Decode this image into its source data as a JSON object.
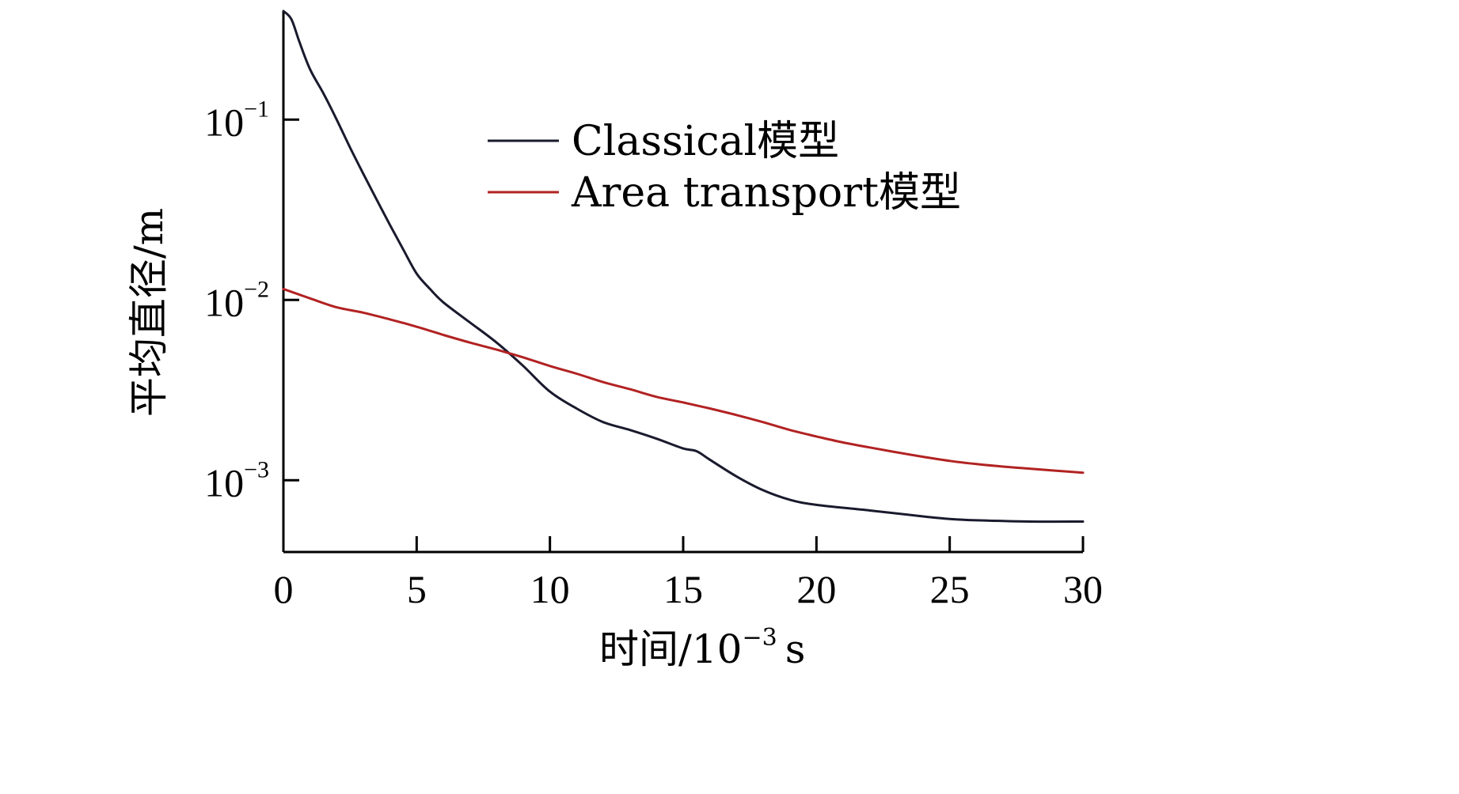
{
  "chart_data": {
    "type": "line",
    "xlabel": "时间/10",
    "xlabel_exp": "−3",
    "xlabel_unit": "s",
    "ylabel": "平均直径/m",
    "xlim": [
      0,
      30
    ],
    "y_scale": "log",
    "ylim": [
      0.0004,
      0.4
    ],
    "grid": false,
    "legend_position": "top-right",
    "x_ticks": [
      0,
      5,
      10,
      15,
      20,
      25,
      30
    ],
    "y_ticks": [
      {
        "value": 0.1,
        "base": "10",
        "exp": "−1"
      },
      {
        "value": 0.01,
        "base": "10",
        "exp": "−2"
      },
      {
        "value": 0.001,
        "base": "10",
        "exp": "−3"
      }
    ],
    "series": [
      {
        "name": "Classical模型",
        "color": "#1a1a2e",
        "points": [
          [
            0,
            0.4
          ],
          [
            0.3,
            0.36
          ],
          [
            0.6,
            0.27
          ],
          [
            1,
            0.19
          ],
          [
            1.5,
            0.14
          ],
          [
            2,
            0.1
          ],
          [
            2.5,
            0.07
          ],
          [
            3,
            0.05
          ],
          [
            3.5,
            0.036
          ],
          [
            4,
            0.026
          ],
          [
            4.5,
            0.019
          ],
          [
            5,
            0.014
          ],
          [
            5.5,
            0.0115
          ],
          [
            6,
            0.0097
          ],
          [
            7,
            0.0075
          ],
          [
            8,
            0.0058
          ],
          [
            9,
            0.0043
          ],
          [
            10,
            0.0031
          ],
          [
            11,
            0.0025
          ],
          [
            12,
            0.0021
          ],
          [
            13,
            0.0019
          ],
          [
            14,
            0.0017
          ],
          [
            15,
            0.0015
          ],
          [
            15.5,
            0.00145
          ],
          [
            16,
            0.0013
          ],
          [
            17,
            0.00105
          ],
          [
            18,
            0.00088
          ],
          [
            19,
            0.00078
          ],
          [
            20,
            0.00073
          ],
          [
            22,
            0.00068
          ],
          [
            24,
            0.00063
          ],
          [
            25,
            0.00061
          ],
          [
            26,
            0.0006
          ],
          [
            28,
            0.00059
          ],
          [
            30,
            0.00059
          ]
        ]
      },
      {
        "name": "Area transport模型",
        "color": "#b22222",
        "points": [
          [
            0,
            0.0115
          ],
          [
            1,
            0.0102
          ],
          [
            2,
            0.0091
          ],
          [
            3,
            0.0085
          ],
          [
            4,
            0.0078
          ],
          [
            5,
            0.0071
          ],
          [
            6,
            0.0064
          ],
          [
            7,
            0.0058
          ],
          [
            8,
            0.0053
          ],
          [
            9,
            0.0048
          ],
          [
            10,
            0.0043
          ],
          [
            11,
            0.0039
          ],
          [
            12,
            0.0035
          ],
          [
            13,
            0.0032
          ],
          [
            14,
            0.0029
          ],
          [
            15,
            0.0027
          ],
          [
            16,
            0.0025
          ],
          [
            17,
            0.0023
          ],
          [
            18,
            0.0021
          ],
          [
            19,
            0.0019
          ],
          [
            20,
            0.00175
          ],
          [
            21,
            0.00162
          ],
          [
            22,
            0.00152
          ],
          [
            23,
            0.00143
          ],
          [
            24,
            0.00135
          ],
          [
            25,
            0.00128
          ],
          [
            26,
            0.00123
          ],
          [
            27,
            0.00119
          ],
          [
            28,
            0.00116
          ],
          [
            29,
            0.00113
          ],
          [
            30,
            0.0011
          ]
        ]
      }
    ]
  }
}
